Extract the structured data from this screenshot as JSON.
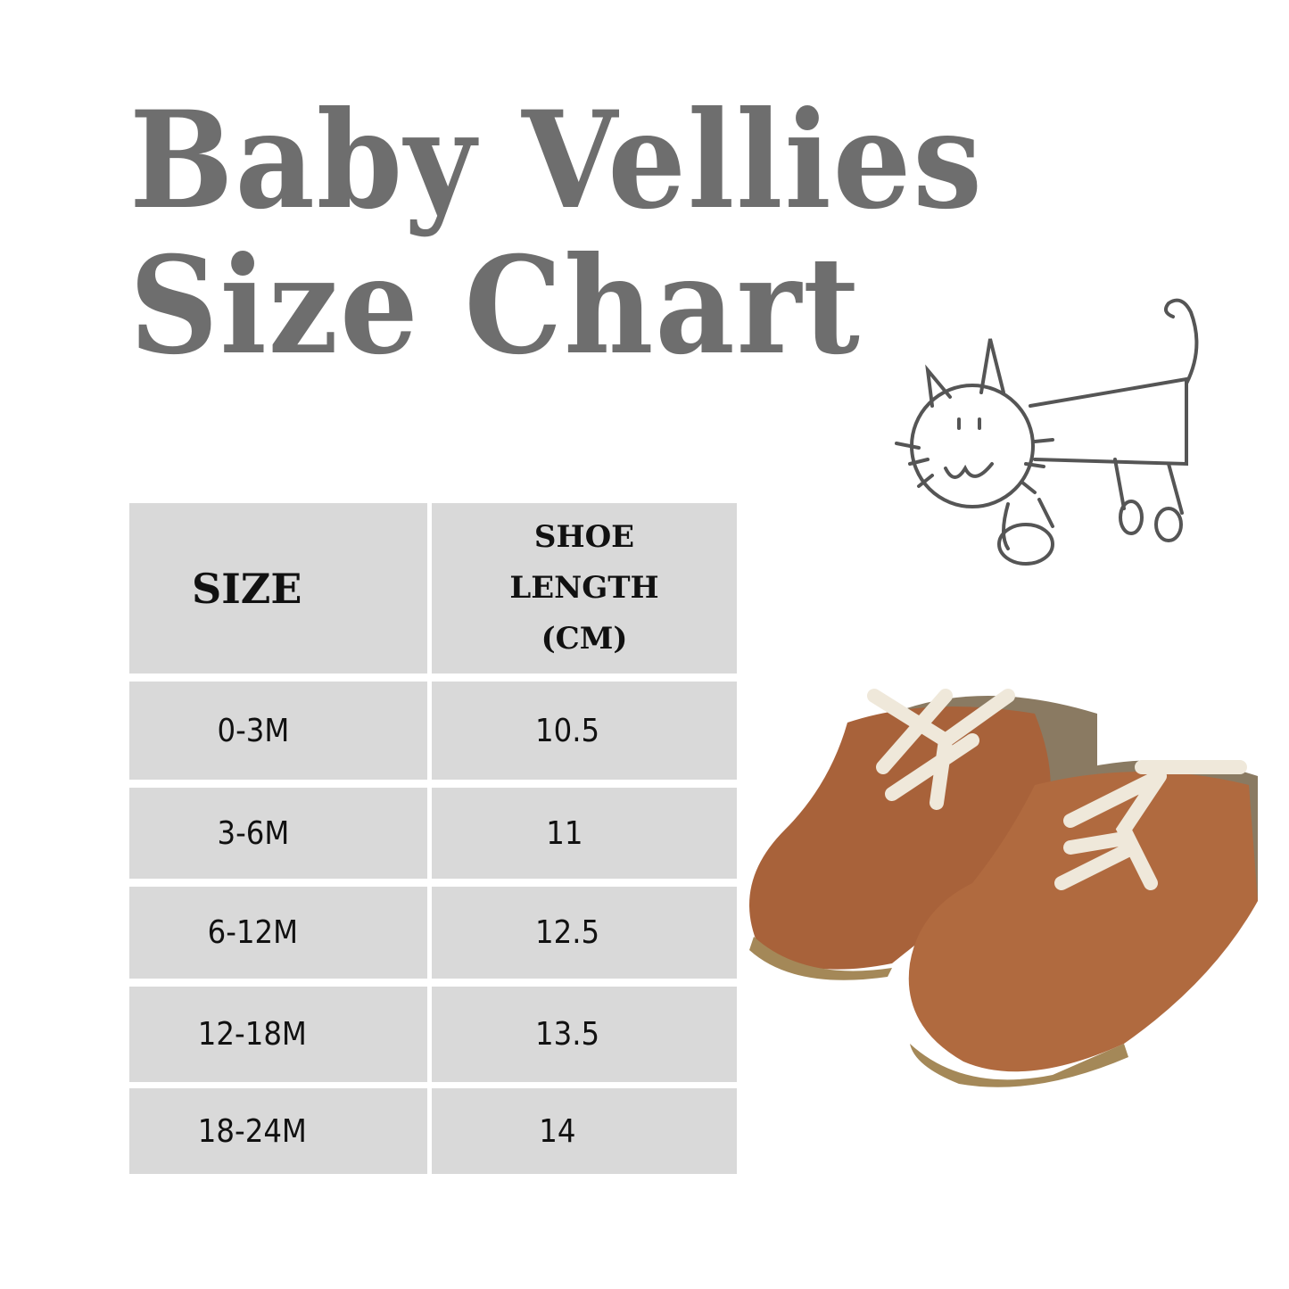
{
  "title": {
    "line1": "Baby Vellies",
    "line2": "Size Chart"
  },
  "table": {
    "headers": {
      "size": "SIZE",
      "length_l1": "SHOE",
      "length_l2": "LENGTH",
      "length_l3": "(CM)"
    },
    "rows": [
      {
        "size": "0-3M",
        "length": "10.5"
      },
      {
        "size": "3-6M",
        "length": "11"
      },
      {
        "size": "6-12M",
        "length": "12.5"
      },
      {
        "size": "12-18M",
        "length": "13.5"
      },
      {
        "size": "18-24M",
        "length": "14"
      }
    ]
  },
  "colors": {
    "title": "#6e6e6e",
    "cell_bg": "#d9d9d9",
    "leather": "#a8623a",
    "laces": "#efe8da"
  },
  "illustrations": [
    "cat-doodle",
    "baby-shoes-photo"
  ]
}
